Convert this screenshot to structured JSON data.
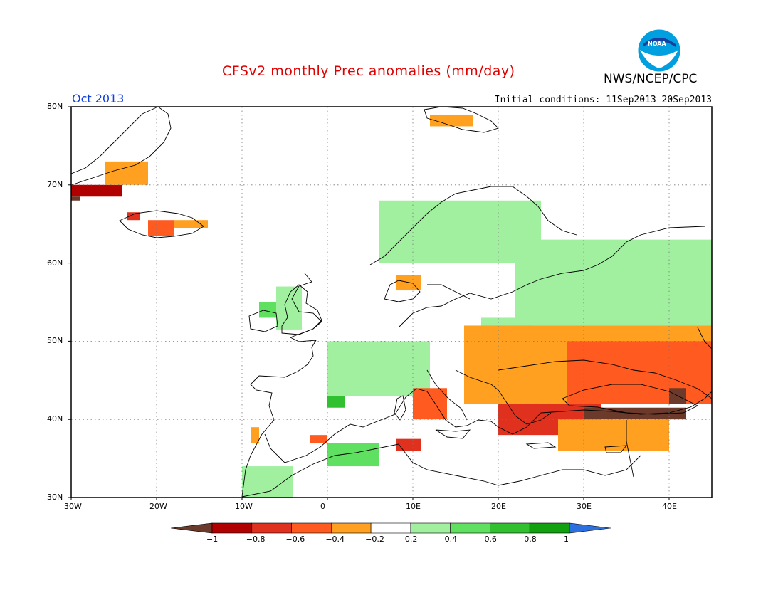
{
  "header": {
    "title": "CFSv2 monthly Prec anomalies (mm/day)",
    "agency": "NWS/NCEP/CPC",
    "month": "Oct 2013",
    "initial_conditions": "Initial conditions: 11Sep2013–20Sep2013",
    "logo_text": "NOAA"
  },
  "map": {
    "lon_range": [
      -30,
      45
    ],
    "lat_range": [
      30,
      80
    ],
    "grid": "dotted",
    "lat_ticks": [
      {
        "value": 80,
        "label": "80N"
      },
      {
        "value": 70,
        "label": "70N"
      },
      {
        "value": 60,
        "label": "60N"
      },
      {
        "value": 50,
        "label": "50N"
      },
      {
        "value": 40,
        "label": "40N"
      },
      {
        "value": 30,
        "label": "30N"
      }
    ],
    "lon_ticks": [
      {
        "value": -30,
        "label": "30W"
      },
      {
        "value": -20,
        "label": "20W"
      },
      {
        "value": -10,
        "label": "10W"
      },
      {
        "value": 0,
        "label": "0"
      },
      {
        "value": 10,
        "label": "10E"
      },
      {
        "value": 20,
        "label": "20E"
      },
      {
        "value": 30,
        "label": "30E"
      },
      {
        "value": 40,
        "label": "40E"
      }
    ]
  },
  "colorbar": {
    "below_color": "#6b3a2a",
    "above_color": "#2b6fe0",
    "bins": [
      {
        "color": "#b00000"
      },
      {
        "color": "#e0301e"
      },
      {
        "color": "#ff5a1f"
      },
      {
        "color": "#ffa020"
      },
      {
        "color": "#ffffff"
      },
      {
        "color": "#a0f0a0"
      },
      {
        "color": "#60e060"
      },
      {
        "color": "#30c030"
      },
      {
        "color": "#10a010"
      }
    ],
    "labels": [
      "−1",
      "−0.8",
      "−0.6",
      "−0.4",
      "−0.2",
      "0.2",
      "0.4",
      "0.6",
      "0.8",
      "1"
    ]
  },
  "chart_data": {
    "type": "heatmap",
    "title": "CFSv2 monthly Prec anomalies (mm/day)",
    "units": "mm/day",
    "period": "Oct 2013",
    "regions": [
      {
        "lon": [
          -30,
          -24
        ],
        "lat": [
          68.5,
          70
        ],
        "value": -0.9
      },
      {
        "lon": [
          -30,
          -29
        ],
        "lat": [
          68,
          68.5
        ],
        "value": -1.0
      },
      {
        "lon": [
          -26,
          -21
        ],
        "lat": [
          70,
          73
        ],
        "value": -0.3
      },
      {
        "lon": [
          -23.5,
          -22
        ],
        "lat": [
          65.5,
          66.5
        ],
        "value": -0.7
      },
      {
        "lon": [
          -21,
          -18
        ],
        "lat": [
          63.5,
          65.5
        ],
        "value": -0.6
      },
      {
        "lon": [
          -18,
          -14
        ],
        "lat": [
          64.5,
          65.5
        ],
        "value": -0.3
      },
      {
        "lon": [
          12,
          17
        ],
        "lat": [
          77.5,
          79
        ],
        "value": -0.3
      },
      {
        "lon": [
          8,
          11
        ],
        "lat": [
          56.5,
          58.5
        ],
        "value": -0.3
      },
      {
        "lon": [
          -6,
          -3
        ],
        "lat": [
          51.5,
          57
        ],
        "value": 0.3
      },
      {
        "lon": [
          -8,
          -6
        ],
        "lat": [
          53,
          55
        ],
        "value": 0.5
      },
      {
        "lon": [
          0,
          12
        ],
        "lat": [
          43,
          50
        ],
        "value": 0.3
      },
      {
        "lon": [
          0,
          2
        ],
        "lat": [
          41.5,
          43
        ],
        "value": 0.7
      },
      {
        "lon": [
          0,
          6
        ],
        "lat": [
          34,
          37
        ],
        "value": 0.4
      },
      {
        "lon": [
          -10,
          -4
        ],
        "lat": [
          30,
          34
        ],
        "value": 0.3
      },
      {
        "lon": [
          6,
          25
        ],
        "lat": [
          60,
          68
        ],
        "value": 0.3
      },
      {
        "lon": [
          22,
          45
        ],
        "lat": [
          52,
          63
        ],
        "value": 0.3
      },
      {
        "lon": [
          18,
          24
        ],
        "lat": [
          49,
          53
        ],
        "value": 0.3
      },
      {
        "lon": [
          16,
          45
        ],
        "lat": [
          42,
          52
        ],
        "value": -0.3
      },
      {
        "lon": [
          28,
          45
        ],
        "lat": [
          42,
          50
        ],
        "value": -0.6
      },
      {
        "lon": [
          20,
          32
        ],
        "lat": [
          38,
          42
        ],
        "value": -0.8
      },
      {
        "lon": [
          30,
          42
        ],
        "lat": [
          40,
          41.5
        ],
        "value": -1.0
      },
      {
        "lon": [
          40,
          42
        ],
        "lat": [
          42,
          44
        ],
        "value": -1.0
      },
      {
        "lon": [
          27,
          40
        ],
        "lat": [
          36,
          40
        ],
        "value": -0.3
      },
      {
        "lon": [
          8,
          11
        ],
        "lat": [
          36,
          37.5
        ],
        "value": -0.7
      },
      {
        "lon": [
          10,
          14
        ],
        "lat": [
          40,
          44
        ],
        "value": -0.5
      },
      {
        "lon": [
          -9,
          -8
        ],
        "lat": [
          37,
          39
        ],
        "value": -0.3
      },
      {
        "lon": [
          -2,
          0
        ],
        "lat": [
          37,
          38
        ],
        "value": -0.5
      }
    ]
  }
}
